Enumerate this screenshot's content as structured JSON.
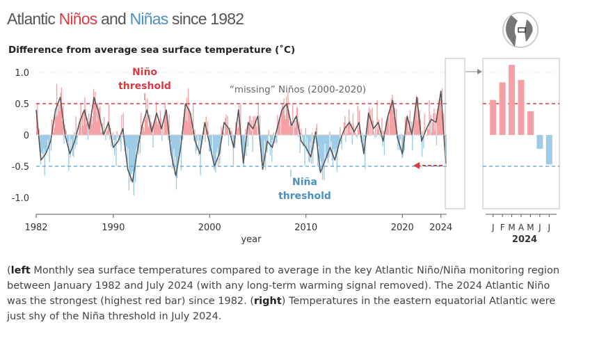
{
  "title": {
    "part1": "Atlantic ",
    "nino": "Niños",
    "part2": " and ",
    "nina": "Niñas",
    "part3": " since 1982"
  },
  "subtitle": "Difference from average sea surface temperature (˚C)",
  "annotations": {
    "nino_threshold_1": "Niño",
    "nino_threshold_2": "threshold",
    "nina_threshold_1": "Niña",
    "nina_threshold_2": "threshold",
    "missing": "“missing” Niños (2000-2020)"
  },
  "caption": {
    "left_label": "left",
    "left_text": " Monthly sea surface temperatures compared to average in the key Atlantic Niño/Niña monitoring region between January 1982 and July 2024 (with any long-term warming signal removed). The 2024 Atlantic Niño was the strongest (highest red bar) since 1982. (",
    "right_label": "right",
    "right_text": ") Temperatures in the eastern equatorial Atlantic were just shy of the Niña threshold in July 2024."
  },
  "colors": {
    "warm": "#f4a0a4",
    "cool": "#9ccbe6",
    "nino_line": "#d93b44",
    "nina_line": "#6aaed8",
    "smooth": "#555555"
  },
  "chart_data": [
    {
      "type": "bar",
      "xlabel": "year",
      "ylabel": "",
      "xticks": [
        "1982",
        "1990",
        "2000",
        "2010",
        "2020",
        "2024"
      ],
      "yticks": [
        "1.0",
        "0.5",
        "0",
        "-0.5",
        "-1.0"
      ],
      "ylim": [
        -1.15,
        1.1
      ],
      "xlim": [
        1982.0,
        2024.6
      ],
      "thresholds": {
        "nino": 0.5,
        "nina": -0.5
      },
      "grid": false,
      "smoothed_series": {
        "name": "",
        "x": [
          1982.0,
          1982.5,
          1983.0,
          1983.5,
          1984.0,
          1984.5,
          1985.0,
          1985.5,
          1986.0,
          1986.5,
          1987.0,
          1987.5,
          1988.0,
          1988.5,
          1989.0,
          1989.5,
          1990.0,
          1990.5,
          1991.0,
          1991.5,
          1992.0,
          1992.5,
          1993.0,
          1993.5,
          1994.0,
          1994.5,
          1995.0,
          1995.5,
          1996.0,
          1996.5,
          1997.0,
          1997.5,
          1998.0,
          1998.5,
          1999.0,
          1999.5,
          2000.0,
          2000.5,
          2001.0,
          2001.5,
          2002.0,
          2002.5,
          2003.0,
          2003.5,
          2004.0,
          2004.5,
          2005.0,
          2005.5,
          2006.0,
          2006.5,
          2007.0,
          2007.5,
          2008.0,
          2008.5,
          2009.0,
          2009.5,
          2010.0,
          2010.5,
          2011.0,
          2011.5,
          2012.0,
          2012.5,
          2013.0,
          2013.5,
          2014.0,
          2014.5,
          2015.0,
          2015.5,
          2016.0,
          2016.5,
          2017.0,
          2017.5,
          2018.0,
          2018.5,
          2019.0,
          2019.5,
          2020.0,
          2020.5,
          2021.0,
          2021.5,
          2022.0,
          2022.5,
          2023.0,
          2023.5,
          2024.0,
          2024.5
        ],
        "values": [
          0.4,
          -0.4,
          -0.3,
          -0.1,
          0.4,
          0.6,
          0.0,
          -0.3,
          -0.1,
          0.2,
          0.4,
          0.1,
          0.6,
          0.35,
          0.0,
          0.2,
          -0.2,
          -0.1,
          0.1,
          -0.55,
          -0.75,
          -0.25,
          0.15,
          0.4,
          0.05,
          0.35,
          0.1,
          0.4,
          -0.3,
          -0.65,
          -0.2,
          0.5,
          0.35,
          -0.1,
          -0.3,
          0.2,
          -0.15,
          -0.5,
          -0.3,
          0.2,
          0.1,
          -0.2,
          0.4,
          -0.45,
          0.2,
          0.1,
          0.3,
          -0.55,
          -0.1,
          -0.2,
          0.1,
          0.4,
          0.5,
          0.15,
          0.3,
          -0.1,
          -0.2,
          -0.35,
          0.05,
          -0.6,
          -0.4,
          -0.2,
          -0.4,
          -0.1,
          0.1,
          0.2,
          0.05,
          0.2,
          -0.3,
          0.35,
          0.1,
          0.2,
          -0.1,
          0.3,
          0.55,
          -0.05,
          -0.3,
          0.3,
          0.0,
          0.6,
          -0.1,
          0.1,
          0.25,
          0.2,
          0.7,
          -0.45
        ]
      }
    },
    {
      "type": "bar",
      "xlabel": "2024",
      "categories": [
        "J",
        "F",
        "M",
        "A",
        "M",
        "J",
        "J"
      ],
      "values": [
        0.56,
        0.84,
        1.12,
        0.88,
        0.38,
        -0.22,
        -0.47
      ],
      "ylim": [
        -1.15,
        1.1
      ],
      "thresholds": {
        "nino": 0.5,
        "nina": -0.5
      }
    }
  ]
}
